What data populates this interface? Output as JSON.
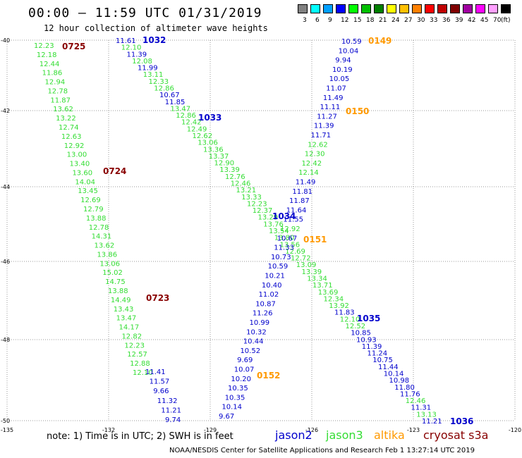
{
  "header": {
    "title": "00:00 – 11:59 UTC 01/31/2019",
    "subtitle": "12 hour collection of altimeter wave heights"
  },
  "color_scale": {
    "unit_label": "(ft)",
    "items": [
      {
        "label": "3",
        "color": "#808080"
      },
      {
        "label": "6",
        "color": "#00ffff"
      },
      {
        "label": "9",
        "color": "#00a0ff"
      },
      {
        "label": "12",
        "color": "#0000ff"
      },
      {
        "label": "15",
        "color": "#00ff00"
      },
      {
        "label": "18",
        "color": "#00c000"
      },
      {
        "label": "21",
        "color": "#008000"
      },
      {
        "label": "24",
        "color": "#ffff00"
      },
      {
        "label": "27",
        "color": "#ffc000"
      },
      {
        "label": "30",
        "color": "#ff8000"
      },
      {
        "label": "33",
        "color": "#ff0000"
      },
      {
        "label": "36",
        "color": "#c00000"
      },
      {
        "label": "39",
        "color": "#800000"
      },
      {
        "label": "42",
        "color": "#a000a0"
      },
      {
        "label": "45",
        "color": "#ff00ff"
      },
      {
        "label": "70",
        "color": "#ffa0ff"
      },
      {
        "label": "",
        "color": "#000000"
      }
    ]
  },
  "axes": {
    "lat_labels": [
      "-40",
      "-42",
      "-44",
      "-46",
      "-48",
      "-50"
    ],
    "lon_labels": [
      "-135",
      "-132",
      "-129",
      "-126",
      "-123",
      "-120"
    ]
  },
  "colors": {
    "jason2": "#0000cc",
    "jason3": "#33dd33",
    "altika": "#ff9900",
    "cryosat": "#880000"
  },
  "passes": [
    {
      "label": "0725",
      "sat": "cryosat"
    },
    {
      "label": "0724",
      "sat": "cryosat"
    },
    {
      "label": "0723",
      "sat": "cryosat"
    },
    {
      "label": "1032",
      "sat": "jason2"
    },
    {
      "label": "1033",
      "sat": "jason2"
    },
    {
      "label": "1034",
      "sat": "jason2"
    },
    {
      "label": "1035",
      "sat": "jason2"
    },
    {
      "label": "1036",
      "sat": "jason2"
    },
    {
      "label": "0149",
      "sat": "altika"
    },
    {
      "label": "0150",
      "sat": "altika"
    },
    {
      "label": "0151",
      "sat": "altika"
    },
    {
      "label": "0152",
      "sat": "altika"
    }
  ],
  "tracks": {
    "cryosat_jason3": [
      "12.23",
      "12.18",
      "12.44",
      "11.86",
      "12.94",
      "12.78",
      "11.87",
      "13.62",
      "13.22",
      "12.74",
      "12.63",
      "12.92",
      "13.00",
      "13.40",
      "13.60",
      "14.04",
      "13.45",
      "12.69",
      "12.79",
      "13.88",
      "12.78",
      "14.31",
      "13.62",
      "13.86",
      "13.06",
      "15.02",
      "14.75",
      "13.88",
      "14.49",
      "13.43",
      "13.47",
      "14.17",
      "12.82",
      "12.23",
      "12.57",
      "12.88",
      "12.10"
    ],
    "cryosat_jason2": [
      "11.41",
      "11.57",
      "9.66",
      "11.32",
      "11.21",
      "9.74"
    ],
    "descending": [
      {
        "v": "11.61",
        "s": "jason2"
      },
      {
        "v": "12.10",
        "s": "jason3"
      },
      {
        "v": "11.39",
        "s": "jason2"
      },
      {
        "v": "12.08",
        "s": "jason3"
      },
      {
        "v": "11.99",
        "s": "jason2"
      },
      {
        "v": "13.11",
        "s": "jason3"
      },
      {
        "v": "12.33",
        "s": "jason3"
      },
      {
        "v": "12.86",
        "s": "jason3"
      },
      {
        "v": "10.67",
        "s": "jason2"
      },
      {
        "v": "11.85",
        "s": "jason2"
      },
      {
        "v": "13.47",
        "s": "jason3"
      },
      {
        "v": "12.86",
        "s": "jason3"
      },
      {
        "v": "12.42",
        "s": "jason3"
      },
      {
        "v": "12.49",
        "s": "jason3"
      },
      {
        "v": "12.62",
        "s": "jason3"
      },
      {
        "v": "13.06",
        "s": "jason3"
      },
      {
        "v": "13.36",
        "s": "jason3"
      },
      {
        "v": "13.37",
        "s": "jason3"
      },
      {
        "v": "12.90",
        "s": "jason3"
      },
      {
        "v": "13.39",
        "s": "jason3"
      },
      {
        "v": "12.76",
        "s": "jason3"
      },
      {
        "v": "12.46",
        "s": "jason3"
      },
      {
        "v": "13.21",
        "s": "jason3"
      },
      {
        "v": "13.33",
        "s": "jason3"
      },
      {
        "v": "12.23",
        "s": "jason3"
      },
      {
        "v": "12.37",
        "s": "jason3"
      },
      {
        "v": "13.29",
        "s": "jason3"
      },
      {
        "v": "13.76",
        "s": "jason3"
      },
      {
        "v": "13.54",
        "s": "jason3"
      },
      {
        "v": "13.80",
        "s": "jason3"
      },
      {
        "v": "13.56",
        "s": "jason3"
      },
      {
        "v": "12.69",
        "s": "jason3"
      },
      {
        "v": "12.72",
        "s": "jason3"
      },
      {
        "v": "13.09",
        "s": "jason3"
      },
      {
        "v": "13.39",
        "s": "jason3"
      },
      {
        "v": "13.34",
        "s": "jason3"
      },
      {
        "v": "13.71",
        "s": "jason3"
      },
      {
        "v": "13.69",
        "s": "jason3"
      },
      {
        "v": "12.34",
        "s": "jason3"
      },
      {
        "v": "13.92",
        "s": "jason3"
      },
      {
        "v": "11.83",
        "s": "jason2"
      },
      {
        "v": "12.10",
        "s": "jason3"
      },
      {
        "v": "12.52",
        "s": "jason3"
      },
      {
        "v": "10.85",
        "s": "jason2"
      },
      {
        "v": "10.93",
        "s": "jason2"
      },
      {
        "v": "11.39",
        "s": "jason2"
      },
      {
        "v": "11.24",
        "s": "jason2"
      },
      {
        "v": "10.75",
        "s": "jason2"
      },
      {
        "v": "11.44",
        "s": "jason2"
      },
      {
        "v": "10.14",
        "s": "jason2"
      },
      {
        "v": "10.98",
        "s": "jason2"
      },
      {
        "v": "11.80",
        "s": "jason2"
      },
      {
        "v": "11.76",
        "s": "jason2"
      },
      {
        "v": "12.46",
        "s": "jason3"
      },
      {
        "v": "11.31",
        "s": "jason2"
      },
      {
        "v": "13.13",
        "s": "jason3"
      },
      {
        "v": "11.21",
        "s": "jason2"
      }
    ],
    "ascending": [
      {
        "v": "10.59",
        "s": "jason2"
      },
      {
        "v": "10.04",
        "s": "jason2"
      },
      {
        "v": "9.94",
        "s": "jason2"
      },
      {
        "v": "10.19",
        "s": "jason2"
      },
      {
        "v": "10.05",
        "s": "jason2"
      },
      {
        "v": "11.07",
        "s": "jason2"
      },
      {
        "v": "11.49",
        "s": "jason2"
      },
      {
        "v": "11.11",
        "s": "jason2"
      },
      {
        "v": "11.27",
        "s": "jason2"
      },
      {
        "v": "11.39",
        "s": "jason2"
      },
      {
        "v": "11.71",
        "s": "jason2"
      },
      {
        "v": "12.62",
        "s": "jason3"
      },
      {
        "v": "12.30",
        "s": "jason3"
      },
      {
        "v": "12.42",
        "s": "jason3"
      },
      {
        "v": "12.14",
        "s": "jason3"
      },
      {
        "v": "11.49",
        "s": "jason2"
      },
      {
        "v": "11.81",
        "s": "jason2"
      },
      {
        "v": "11.87",
        "s": "jason2"
      },
      {
        "v": "11.64",
        "s": "jason2"
      },
      {
        "v": "11.55",
        "s": "jason2"
      },
      {
        "v": "12.92",
        "s": "jason3"
      },
      {
        "v": "10.67",
        "s": "jason2"
      },
      {
        "v": "11.33",
        "s": "jason2"
      },
      {
        "v": "10.73",
        "s": "jason2"
      },
      {
        "v": "10.59",
        "s": "jason2"
      },
      {
        "v": "10.21",
        "s": "jason2"
      },
      {
        "v": "10.40",
        "s": "jason2"
      },
      {
        "v": "11.02",
        "s": "jason2"
      },
      {
        "v": "10.87",
        "s": "jason2"
      },
      {
        "v": "11.26",
        "s": "jason2"
      },
      {
        "v": "10.99",
        "s": "jason2"
      },
      {
        "v": "10.32",
        "s": "jason2"
      },
      {
        "v": "10.44",
        "s": "jason2"
      },
      {
        "v": "10.52",
        "s": "jason2"
      },
      {
        "v": "9.69",
        "s": "jason2"
      },
      {
        "v": "10.07",
        "s": "jason2"
      },
      {
        "v": "10.20",
        "s": "jason2"
      },
      {
        "v": "10.35",
        "s": "jason2"
      },
      {
        "v": "10.35",
        "s": "jason2"
      },
      {
        "v": "10.14",
        "s": "jason2"
      },
      {
        "v": "9.67",
        "s": "jason2"
      }
    ]
  },
  "footer": {
    "note": "note: 1) Time is in UTC; 2) SWH is in feet",
    "legend": [
      {
        "label": "jason2",
        "sat": "jason2"
      },
      {
        "label": "jason3",
        "sat": "jason3"
      },
      {
        "label": "altika",
        "sat": "altika"
      },
      {
        "label": "cryosat s3a",
        "sat": "cryosat"
      }
    ],
    "credit": "NOAA/NESDIS Center for Satellite Applications and Research   Feb  1 13:27:14 UTC 2019"
  }
}
